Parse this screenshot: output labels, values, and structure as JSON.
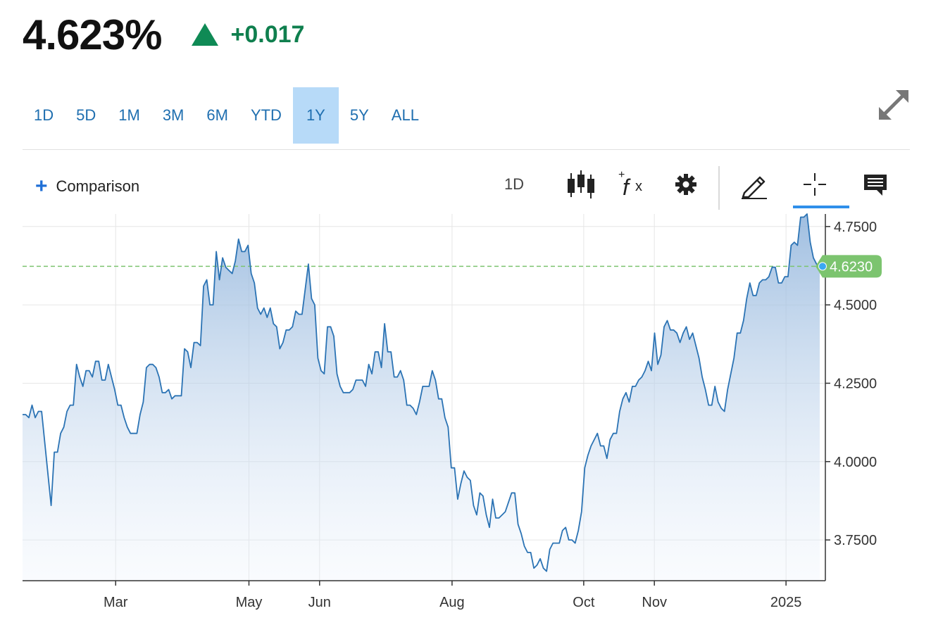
{
  "quote": {
    "price": "4.623%",
    "change": "+0.017",
    "direction": "up",
    "up_color": "#0f8a55"
  },
  "ranges": [
    "1D",
    "5D",
    "1M",
    "3M",
    "6M",
    "YTD",
    "1Y",
    "5Y",
    "ALL"
  ],
  "active_range": "1Y",
  "toolbar": {
    "comparison_label": "Comparison",
    "interval_label": "1D",
    "icons": [
      "candlestick-icon",
      "function-icon",
      "gear-icon",
      "pencil-icon",
      "crosshair-icon",
      "comment-icon"
    ]
  },
  "chart_data": {
    "type": "area",
    "x_labels": [
      "Mar",
      "May",
      "Jun",
      "Aug",
      "Oct",
      "Nov",
      "2025"
    ],
    "y_tick_labels": [
      "4.7500",
      "4.5000",
      "4.2500",
      "4.0000",
      "3.7500"
    ],
    "y_ticks": [
      4.75,
      4.5,
      4.25,
      4.0,
      3.75
    ],
    "ylim": [
      3.62,
      4.79
    ],
    "last_value": 4.623,
    "last_label": "4.6230",
    "line_color": "#2b73b4",
    "reference_line_color": "#7cc46f",
    "series": [
      {
        "values": [
          4.15,
          4.15,
          4.14,
          4.18,
          4.14,
          4.16,
          4.16,
          4.06,
          3.96,
          3.86,
          4.03,
          4.03,
          4.09,
          4.11,
          4.16,
          4.18,
          4.18,
          4.31,
          4.27,
          4.24,
          4.29,
          4.29,
          4.27,
          4.32,
          4.32,
          4.26,
          4.26,
          4.31,
          4.27,
          4.23,
          4.18,
          4.18,
          4.14,
          4.11,
          4.09,
          4.09,
          4.09,
          4.15,
          4.19,
          4.3,
          4.31,
          4.31,
          4.3,
          4.27,
          4.22,
          4.22,
          4.23,
          4.2,
          4.21,
          4.21,
          4.21,
          4.36,
          4.35,
          4.3,
          4.38,
          4.38,
          4.37,
          4.56,
          4.58,
          4.5,
          4.5,
          4.67,
          4.58,
          4.65,
          4.62,
          4.61,
          4.6,
          4.64,
          4.71,
          4.67,
          4.67,
          4.69,
          4.6,
          4.57,
          4.49,
          4.47,
          4.49,
          4.46,
          4.49,
          4.44,
          4.43,
          4.36,
          4.38,
          4.42,
          4.42,
          4.43,
          4.48,
          4.47,
          4.47,
          4.55,
          4.63,
          4.52,
          4.5,
          4.33,
          4.29,
          4.28,
          4.43,
          4.43,
          4.4,
          4.28,
          4.24,
          4.22,
          4.22,
          4.22,
          4.23,
          4.26,
          4.26,
          4.26,
          4.24,
          4.31,
          4.28,
          4.35,
          4.35,
          4.3,
          4.44,
          4.35,
          4.35,
          4.27,
          4.27,
          4.29,
          4.26,
          4.18,
          4.18,
          4.17,
          4.15,
          4.19,
          4.24,
          4.24,
          4.24,
          4.29,
          4.26,
          4.2,
          4.2,
          4.14,
          4.11,
          3.98,
          3.98,
          3.88,
          3.93,
          3.97,
          3.95,
          3.94,
          3.86,
          3.83,
          3.9,
          3.89,
          3.83,
          3.79,
          3.88,
          3.82,
          3.82,
          3.83,
          3.84,
          3.87,
          3.9,
          3.9,
          3.8,
          3.77,
          3.73,
          3.71,
          3.71,
          3.66,
          3.67,
          3.69,
          3.66,
          3.65,
          3.72,
          3.74,
          3.74,
          3.74,
          3.78,
          3.79,
          3.75,
          3.75,
          3.74,
          3.78,
          3.84,
          3.98,
          4.02,
          4.05,
          4.07,
          4.09,
          4.05,
          4.05,
          4.01,
          4.07,
          4.09,
          4.09,
          4.16,
          4.2,
          4.22,
          4.19,
          4.24,
          4.24,
          4.26,
          4.27,
          4.29,
          4.32,
          4.29,
          4.41,
          4.31,
          4.34,
          4.43,
          4.45,
          4.42,
          4.42,
          4.41,
          4.38,
          4.41,
          4.43,
          4.39,
          4.41,
          4.37,
          4.33,
          4.27,
          4.23,
          4.18,
          4.18,
          4.24,
          4.19,
          4.17,
          4.16,
          4.23,
          4.28,
          4.33,
          4.41,
          4.41,
          4.45,
          4.52,
          4.57,
          4.53,
          4.53,
          4.57,
          4.58,
          4.58,
          4.59,
          4.62,
          4.62,
          4.57,
          4.57,
          4.59,
          4.59,
          4.69,
          4.7,
          4.69,
          4.78,
          4.78,
          4.79,
          4.7,
          4.65,
          4.63,
          4.623
        ]
      }
    ]
  }
}
